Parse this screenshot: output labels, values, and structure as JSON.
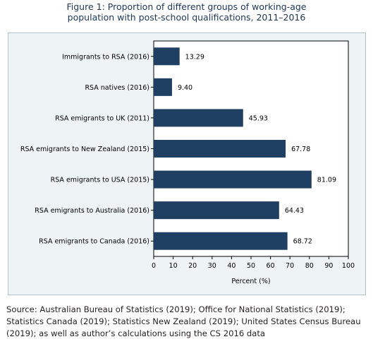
{
  "figure": {
    "title_line1": "Figure 1: Proportion of different groups of working-age",
    "title_line2": "population with post-school qualifications, 2011–2016"
  },
  "chart_data": {
    "type": "bar",
    "orientation": "horizontal",
    "categories": [
      "Immigrants to RSA (2016)",
      "RSA natives (2016)",
      "RSA emigrants to UK (2011)",
      "RSA emigrants to New Zealand (2015)",
      "RSA emigrants to USA (2015)",
      "RSA emigrants to Australia (2016)",
      "RSA emigrants to Canada (2016)"
    ],
    "values": [
      13.29,
      9.4,
      45.93,
      67.78,
      81.09,
      64.43,
      68.72
    ],
    "value_labels": [
      "13.29",
      "9.40",
      "45.93",
      "67.78",
      "81.09",
      "64.43",
      "68.72"
    ],
    "xlabel": "Percent (%)",
    "xlim": [
      0,
      100
    ],
    "xticks": [
      0,
      10,
      20,
      30,
      40,
      50,
      60,
      70,
      80,
      90,
      100
    ],
    "bar_color": "#1f3f63",
    "plot_background": "#ffffff",
    "panel_background": "#eef3f6",
    "grid": false
  },
  "source": {
    "text": "Source: Australian Bureau of Statistics (2019); Office for National Statistics (2019); Statistics Canada (2019); Statistics New Zealand (2019); United States Census Bureau (2019); as well as author’s calculations using the CS 2016 data"
  }
}
